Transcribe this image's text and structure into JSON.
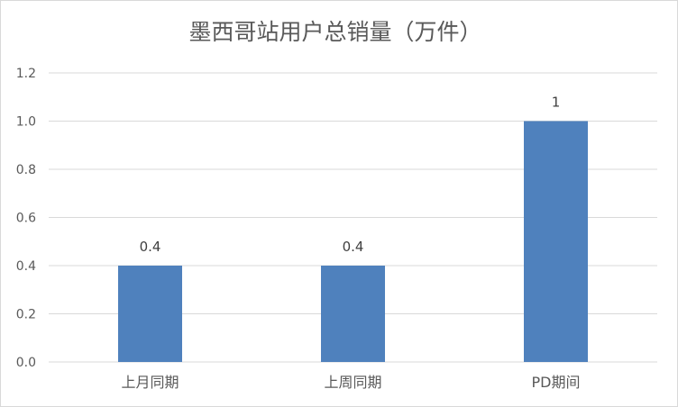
{
  "chart_data": {
    "type": "bar",
    "title": "墨西哥站用户总销量（万件）",
    "xlabel": "",
    "ylabel": "",
    "categories": [
      "上月同期",
      "上周同期",
      "PD期间"
    ],
    "values": [
      0.4,
      0.4,
      1
    ],
    "data_labels": [
      "0.4",
      "0.4",
      "1"
    ],
    "ylim": [
      0,
      1.2
    ],
    "yticks": [
      "0.0",
      "0.2",
      "0.4",
      "0.6",
      "0.8",
      "1.0",
      "1.2"
    ],
    "grid": true,
    "legend": "none",
    "colors": {
      "bar": "#4f81bd",
      "gridline": "#d9d9d9",
      "text": "#595959"
    }
  }
}
